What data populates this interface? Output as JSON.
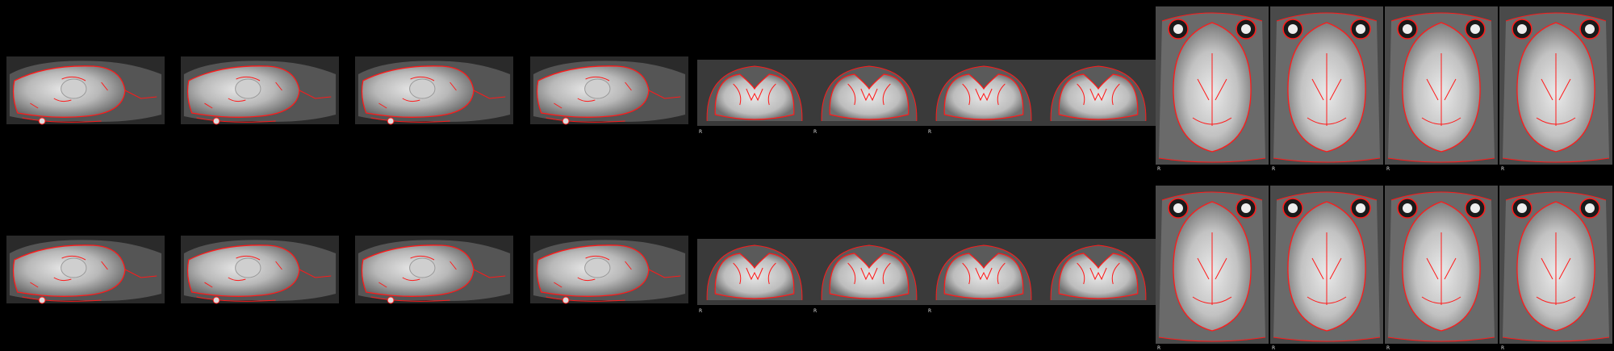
{
  "overlay_color": "#ff1a1a",
  "rows": [
    {
      "name": "top"
    },
    {
      "name": "bottom"
    }
  ],
  "slices": [
    {
      "view": "sagittal"
    },
    {
      "view": "sagittal"
    },
    {
      "view": "sagittal"
    },
    {
      "view": "sagittal"
    },
    {
      "view": "coronal",
      "label": "R"
    },
    {
      "view": "coronal",
      "label": "R"
    },
    {
      "view": "coronal",
      "label": "R"
    },
    {
      "view": "coronal"
    },
    {
      "view": "axial",
      "label": "R"
    },
    {
      "view": "axial",
      "label": "R"
    },
    {
      "view": "axial",
      "label": "R"
    },
    {
      "view": "axial",
      "label": "R"
    }
  ]
}
